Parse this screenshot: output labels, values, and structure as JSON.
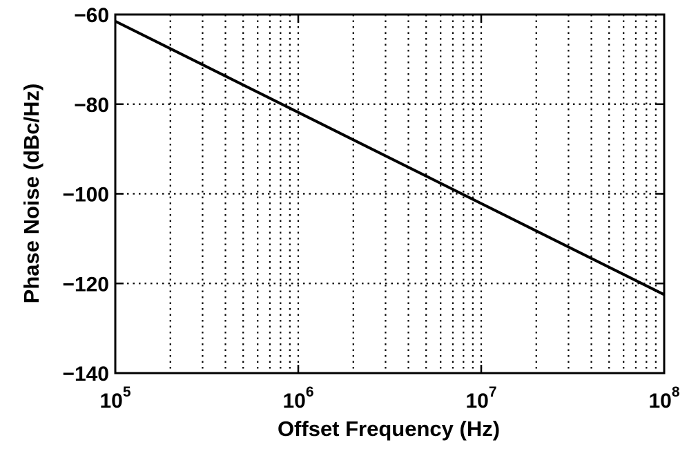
{
  "chart_data": {
    "type": "line",
    "title": "",
    "xlabel": "Offset Frequency (Hz)",
    "ylabel": "Phase Noise (dBc/Hz)",
    "xscale": "log",
    "xlim": [
      100000,
      100000000
    ],
    "ylim": [
      -140,
      -60
    ],
    "grid": true,
    "legend": "none",
    "x_ticks": [
      {
        "value": 100000,
        "base": "10",
        "exp": "5"
      },
      {
        "value": 1000000,
        "base": "10",
        "exp": "6"
      },
      {
        "value": 10000000,
        "base": "10",
        "exp": "7"
      },
      {
        "value": 100000000,
        "base": "10",
        "exp": "8"
      }
    ],
    "y_ticks": [
      {
        "value": -60,
        "label": "−60"
      },
      {
        "value": -80,
        "label": "−80"
      },
      {
        "value": -100,
        "label": "−100"
      },
      {
        "value": -120,
        "label": "−120"
      },
      {
        "value": -140,
        "label": "−140"
      }
    ],
    "series": [
      {
        "x": [
          100000,
          100000000
        ],
        "y": [
          -61.5,
          -122.5
        ],
        "color": "#000000"
      }
    ]
  }
}
